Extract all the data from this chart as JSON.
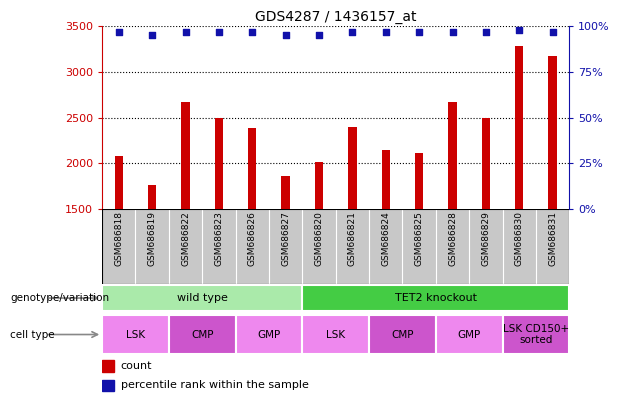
{
  "title": "GDS4287 / 1436157_at",
  "samples": [
    "GSM686818",
    "GSM686819",
    "GSM686822",
    "GSM686823",
    "GSM686826",
    "GSM686827",
    "GSM686820",
    "GSM686821",
    "GSM686824",
    "GSM686825",
    "GSM686828",
    "GSM686829",
    "GSM686830",
    "GSM686831"
  ],
  "counts": [
    2075,
    1760,
    2670,
    2490,
    2390,
    1860,
    2010,
    2400,
    2140,
    2110,
    2670,
    2490,
    3280,
    3180
  ],
  "percentile_ranks": [
    97,
    95,
    97,
    97,
    97,
    95,
    95,
    97,
    97,
    97,
    97,
    97,
    98,
    97
  ],
  "ylim_left": [
    1500,
    3500
  ],
  "ylim_right": [
    0,
    100
  ],
  "yticks_left": [
    1500,
    2000,
    2500,
    3000,
    3500
  ],
  "yticks_right": [
    0,
    25,
    50,
    75,
    100
  ],
  "bar_color": "#cc0000",
  "dot_color": "#1111aa",
  "bar_bg_color": "#c8c8c8",
  "genotype_groups": [
    {
      "label": "wild type",
      "start": 0,
      "end": 6,
      "color": "#aaeaaa"
    },
    {
      "label": "TET2 knockout",
      "start": 6,
      "end": 14,
      "color": "#44cc44"
    }
  ],
  "cell_type_groups": [
    {
      "label": "LSK",
      "start": 0,
      "end": 2,
      "color": "#ee88ee"
    },
    {
      "label": "CMP",
      "start": 2,
      "end": 4,
      "color": "#cc55cc"
    },
    {
      "label": "GMP",
      "start": 4,
      "end": 6,
      "color": "#ee88ee"
    },
    {
      "label": "LSK",
      "start": 6,
      "end": 8,
      "color": "#ee88ee"
    },
    {
      "label": "CMP",
      "start": 8,
      "end": 10,
      "color": "#cc55cc"
    },
    {
      "label": "GMP",
      "start": 10,
      "end": 12,
      "color": "#ee88ee"
    },
    {
      "label": "LSK CD150+\nsorted",
      "start": 12,
      "end": 14,
      "color": "#cc55cc"
    }
  ],
  "left_label_color": "#cc0000",
  "right_label_color": "#1111aa"
}
